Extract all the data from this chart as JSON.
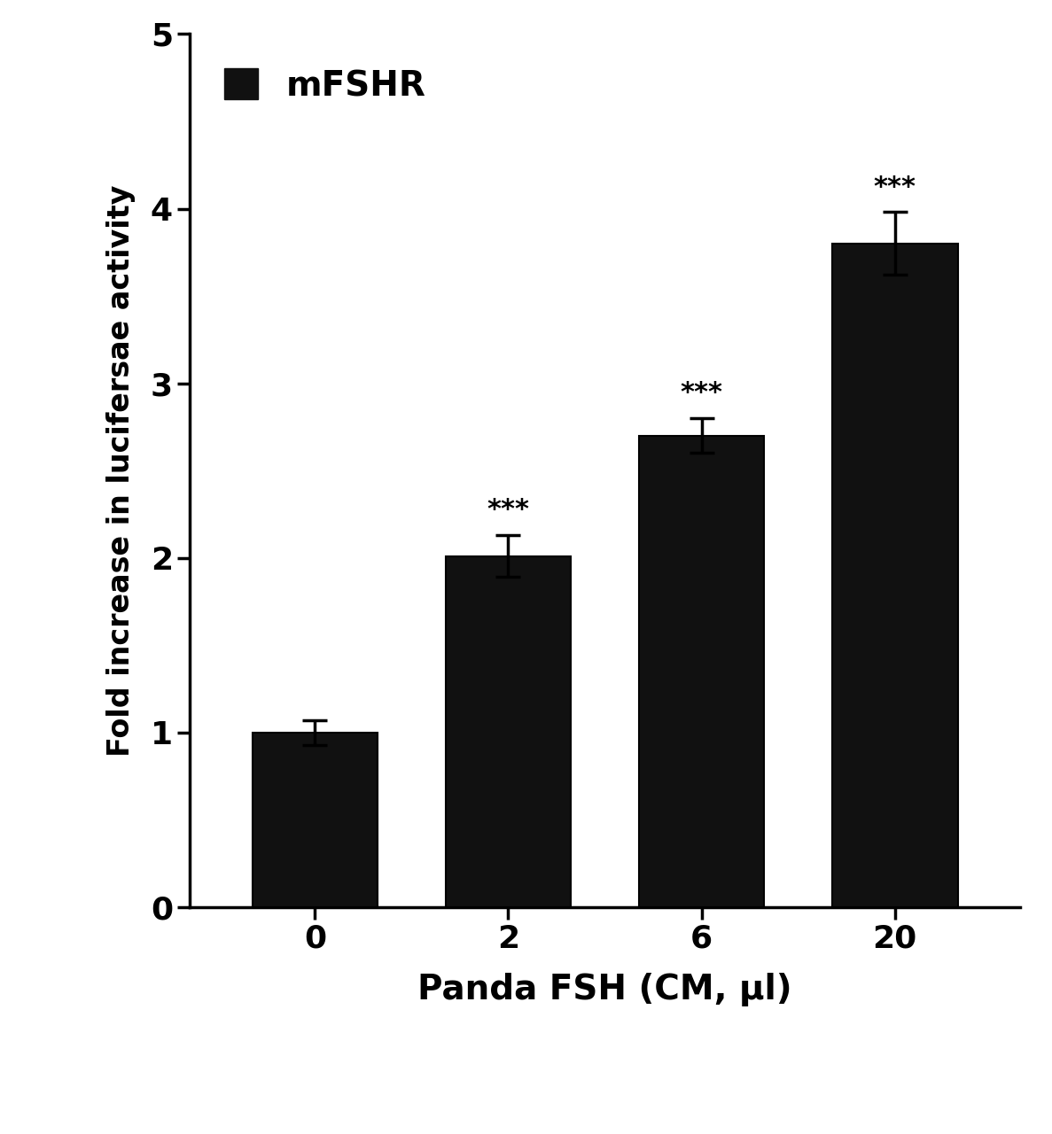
{
  "categories": [
    "0",
    "2",
    "6",
    "20"
  ],
  "values": [
    1.0,
    2.01,
    2.7,
    3.8
  ],
  "errors": [
    0.07,
    0.12,
    0.1,
    0.18
  ],
  "bar_color": "#111111",
  "bar_edge_color": "#000000",
  "significance": [
    "",
    "***",
    "***",
    "***"
  ],
  "ylabel": "Fold increase in lucifersae activity",
  "xlabel": "Panda FSH (CM, μl)",
  "ylim": [
    0,
    5
  ],
  "yticks": [
    0,
    1,
    2,
    3,
    4,
    5
  ],
  "legend_label": "mFSHR",
  "legend_color": "#111111",
  "bar_width": 0.65,
  "ylabel_fontsize": 24,
  "xlabel_fontsize": 28,
  "tick_fontsize": 26,
  "legend_fontsize": 28,
  "sig_fontsize": 22,
  "background_color": "#ffffff"
}
